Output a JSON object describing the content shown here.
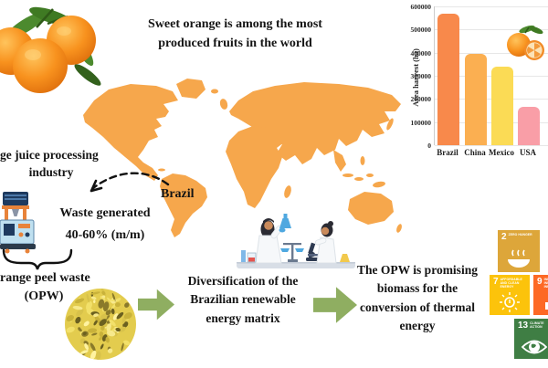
{
  "figure": {
    "title_line1": "Sweet orange is among the most",
    "title_line2": "produced fruits in the world",
    "brazil_label": "Brazil",
    "industry_line1": "ge juice processing",
    "industry_line2": "industry",
    "waste_line1": "Waste generated",
    "waste_line2": "40-60% (m/m)",
    "opw_line1": "range peel waste",
    "opw_line2": "(OPW)",
    "diversification_line1": "Diversification of the",
    "diversification_line2": "Brazilian renewable",
    "diversification_line3": "energy matrix",
    "promise_line1": "The OPW is promising",
    "promise_line2": "biomass for the",
    "promise_line3": "conversion of thermal",
    "promise_line4": "energy"
  },
  "chart_data": {
    "type": "bar",
    "title": "",
    "xlabel": "",
    "ylabel": "Area harvest (ha)",
    "categories": [
      "Brazil",
      "China",
      "Mexico",
      "USA"
    ],
    "values": [
      570000,
      395000,
      340000,
      166000
    ],
    "bar_colors": [
      "#F8894B",
      "#FBAF51",
      "#FBDB55",
      "#F99EA7"
    ],
    "ylim": [
      0,
      600000
    ],
    "yticks": [
      0,
      100000,
      200000,
      300000,
      400000,
      500000,
      600000
    ],
    "grid": true,
    "legend_position": "none"
  },
  "sdg_icons": [
    {
      "number": "2",
      "label": "ZERO HUNGER",
      "color": "#DDA63A",
      "icon": "bowl-icon"
    },
    {
      "number": "7",
      "label": "AFFORDABLE AND CLEAN ENERGY",
      "color": "#FCC30B",
      "icon": "sun-icon"
    },
    {
      "number": "9",
      "label": "INDUSTRY, INNOVATION AND INFRASTRUCTURE",
      "color": "#FD6925",
      "icon": "cubes-icon"
    },
    {
      "number": "13",
      "label": "CLIMATE ACTION",
      "color": "#3F7E44",
      "icon": "eye-globe-icon"
    }
  ],
  "colors": {
    "map": "#F6A74C",
    "arrow_green": "#8FAE61",
    "text": "#141414"
  }
}
